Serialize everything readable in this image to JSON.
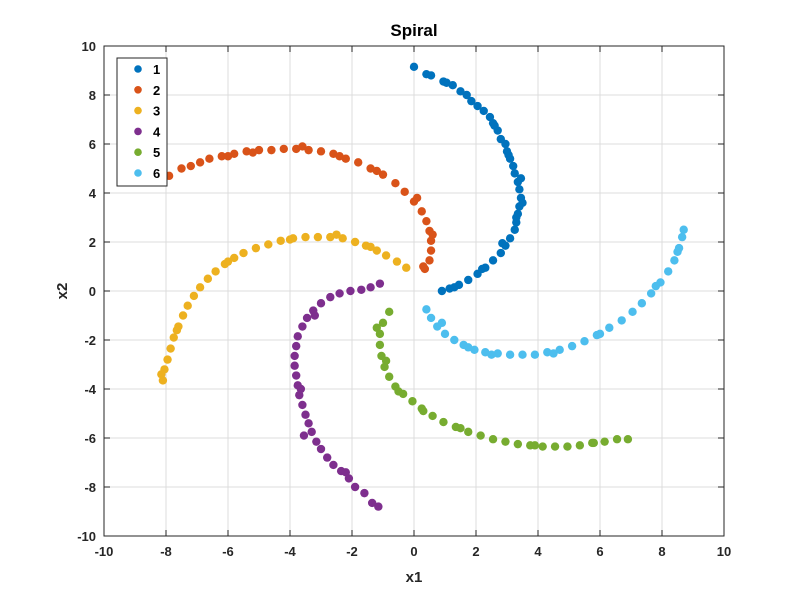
{
  "chart_data": {
    "type": "scatter",
    "title": "Spiral",
    "xlabel": "x1",
    "ylabel": "x2",
    "xlim": [
      -10,
      10
    ],
    "ylim": [
      -10,
      10
    ],
    "xticks": [
      -10,
      -8,
      -6,
      -4,
      -2,
      0,
      2,
      4,
      6,
      8,
      10
    ],
    "yticks": [
      -10,
      -8,
      -6,
      -4,
      -2,
      0,
      2,
      4,
      6,
      8,
      10
    ],
    "grid": true,
    "legend_position": "top-left",
    "series": [
      {
        "name": "1",
        "color": "#0072BD",
        "points": [
          [
            0.0,
            9.15
          ],
          [
            0.4,
            8.85
          ],
          [
            0.55,
            8.8
          ],
          [
            0.95,
            8.55
          ],
          [
            1.25,
            8.4
          ],
          [
            1.5,
            8.15
          ],
          [
            1.7,
            8.0
          ],
          [
            1.85,
            7.75
          ],
          [
            2.05,
            7.55
          ],
          [
            2.25,
            7.35
          ],
          [
            2.45,
            7.1
          ],
          [
            2.55,
            6.85
          ],
          [
            2.7,
            6.55
          ],
          [
            2.8,
            6.2
          ],
          [
            2.95,
            6.0
          ],
          [
            3.0,
            5.7
          ],
          [
            3.1,
            5.4
          ],
          [
            3.2,
            5.1
          ],
          [
            3.25,
            4.8
          ],
          [
            3.35,
            4.45
          ],
          [
            3.4,
            4.15
          ],
          [
            3.45,
            3.8
          ],
          [
            3.4,
            3.45
          ],
          [
            3.35,
            3.15
          ],
          [
            3.3,
            2.8
          ],
          [
            3.25,
            2.5
          ],
          [
            3.1,
            2.15
          ],
          [
            2.95,
            1.85
          ],
          [
            2.8,
            1.55
          ],
          [
            2.55,
            1.25
          ],
          [
            2.3,
            0.95
          ],
          [
            2.05,
            0.7
          ],
          [
            1.75,
            0.45
          ],
          [
            1.45,
            0.25
          ],
          [
            1.15,
            0.1
          ],
          [
            0.9,
            0.0
          ],
          [
            3.5,
            3.6
          ],
          [
            3.3,
            3.0
          ],
          [
            2.85,
            1.95
          ],
          [
            2.2,
            0.9
          ],
          [
            1.3,
            0.15
          ],
          [
            3.05,
            5.55
          ],
          [
            2.6,
            6.75
          ],
          [
            1.05,
            8.5
          ],
          [
            3.45,
            4.6
          ]
        ]
      },
      {
        "name": "2",
        "color": "#D95319",
        "points": [
          [
            -7.9,
            4.7
          ],
          [
            -7.5,
            5.0
          ],
          [
            -7.2,
            5.1
          ],
          [
            -6.9,
            5.25
          ],
          [
            -6.6,
            5.4
          ],
          [
            -6.2,
            5.5
          ],
          [
            -5.8,
            5.6
          ],
          [
            -5.4,
            5.7
          ],
          [
            -5.0,
            5.75
          ],
          [
            -4.6,
            5.75
          ],
          [
            -4.2,
            5.8
          ],
          [
            -3.8,
            5.8
          ],
          [
            -3.4,
            5.75
          ],
          [
            -3.0,
            5.7
          ],
          [
            -2.6,
            5.6
          ],
          [
            -2.2,
            5.4
          ],
          [
            -1.8,
            5.25
          ],
          [
            -1.4,
            5.0
          ],
          [
            -1.0,
            4.75
          ],
          [
            -0.6,
            4.4
          ],
          [
            -0.3,
            4.05
          ],
          [
            0.0,
            3.65
          ],
          [
            0.25,
            3.25
          ],
          [
            0.4,
            2.85
          ],
          [
            0.5,
            2.45
          ],
          [
            0.55,
            2.05
          ],
          [
            0.55,
            1.65
          ],
          [
            0.5,
            1.25
          ],
          [
            0.35,
            0.9
          ],
          [
            -3.6,
            5.9
          ],
          [
            -5.2,
            5.65
          ],
          [
            -6.0,
            5.5
          ],
          [
            -2.4,
            5.5
          ],
          [
            -1.2,
            4.9
          ],
          [
            0.1,
            3.8
          ],
          [
            0.6,
            2.3
          ],
          [
            0.3,
            1.0
          ]
        ]
      },
      {
        "name": "3",
        "color": "#EDB120",
        "points": [
          [
            -8.1,
            -3.65
          ],
          [
            -8.05,
            -3.2
          ],
          [
            -7.95,
            -2.8
          ],
          [
            -7.85,
            -2.35
          ],
          [
            -7.75,
            -1.9
          ],
          [
            -7.6,
            -1.45
          ],
          [
            -7.45,
            -1.0
          ],
          [
            -7.3,
            -0.6
          ],
          [
            -7.1,
            -0.2
          ],
          [
            -6.9,
            0.15
          ],
          [
            -6.65,
            0.5
          ],
          [
            -6.4,
            0.8
          ],
          [
            -6.1,
            1.1
          ],
          [
            -5.8,
            1.35
          ],
          [
            -5.5,
            1.55
          ],
          [
            -5.1,
            1.75
          ],
          [
            -4.7,
            1.9
          ],
          [
            -4.3,
            2.05
          ],
          [
            -3.9,
            2.15
          ],
          [
            -3.5,
            2.2
          ],
          [
            -3.1,
            2.2
          ],
          [
            -2.7,
            2.2
          ],
          [
            -2.3,
            2.15
          ],
          [
            -1.9,
            2.0
          ],
          [
            -1.55,
            1.85
          ],
          [
            -1.2,
            1.65
          ],
          [
            -0.9,
            1.45
          ],
          [
            -0.55,
            1.2
          ],
          [
            -0.25,
            0.95
          ],
          [
            -4.0,
            2.1
          ],
          [
            -2.5,
            2.3
          ],
          [
            -7.65,
            -1.6
          ],
          [
            -8.15,
            -3.4
          ],
          [
            -6.0,
            1.2
          ],
          [
            -1.4,
            1.8
          ]
        ]
      },
      {
        "name": "4",
        "color": "#7E2F8E",
        "points": [
          [
            -1.15,
            -8.8
          ],
          [
            -1.35,
            -8.65
          ],
          [
            -1.6,
            -8.25
          ],
          [
            -1.9,
            -8.0
          ],
          [
            -2.1,
            -7.65
          ],
          [
            -2.35,
            -7.35
          ],
          [
            -2.6,
            -7.1
          ],
          [
            -2.8,
            -6.8
          ],
          [
            -3.0,
            -6.45
          ],
          [
            -3.15,
            -6.15
          ],
          [
            -3.3,
            -5.75
          ],
          [
            -3.4,
            -5.4
          ],
          [
            -3.5,
            -5.05
          ],
          [
            -3.6,
            -4.65
          ],
          [
            -3.7,
            -4.25
          ],
          [
            -3.75,
            -3.85
          ],
          [
            -3.8,
            -3.45
          ],
          [
            -3.85,
            -3.05
          ],
          [
            -3.85,
            -2.65
          ],
          [
            -3.8,
            -2.25
          ],
          [
            -3.75,
            -1.85
          ],
          [
            -3.6,
            -1.45
          ],
          [
            -3.45,
            -1.1
          ],
          [
            -3.25,
            -0.8
          ],
          [
            -3.0,
            -0.5
          ],
          [
            -2.7,
            -0.25
          ],
          [
            -2.4,
            -0.1
          ],
          [
            -2.05,
            0.0
          ],
          [
            -1.7,
            0.05
          ],
          [
            -1.4,
            0.15
          ],
          [
            -1.1,
            0.3
          ],
          [
            -3.55,
            -5.9
          ],
          [
            -3.65,
            -4.0
          ],
          [
            -2.2,
            -7.4
          ],
          [
            -3.2,
            -1.0
          ]
        ]
      },
      {
        "name": "5",
        "color": "#77AC30",
        "points": [
          [
            -0.8,
            -0.85
          ],
          [
            -1.0,
            -1.3
          ],
          [
            -1.1,
            -1.75
          ],
          [
            -1.1,
            -2.2
          ],
          [
            -1.05,
            -2.65
          ],
          [
            -0.95,
            -3.1
          ],
          [
            -0.8,
            -3.5
          ],
          [
            -0.6,
            -3.9
          ],
          [
            -0.35,
            -4.2
          ],
          [
            -0.05,
            -4.5
          ],
          [
            0.25,
            -4.8
          ],
          [
            0.6,
            -5.1
          ],
          [
            0.95,
            -5.35
          ],
          [
            1.35,
            -5.55
          ],
          [
            1.75,
            -5.75
          ],
          [
            2.15,
            -5.9
          ],
          [
            2.55,
            -6.05
          ],
          [
            2.95,
            -6.15
          ],
          [
            3.35,
            -6.25
          ],
          [
            3.75,
            -6.3
          ],
          [
            4.15,
            -6.35
          ],
          [
            4.55,
            -6.35
          ],
          [
            4.95,
            -6.35
          ],
          [
            5.35,
            -6.3
          ],
          [
            5.75,
            -6.2
          ],
          [
            6.15,
            -6.15
          ],
          [
            6.55,
            -6.05
          ],
          [
            6.9,
            -6.05
          ],
          [
            -1.2,
            -1.5
          ],
          [
            -0.5,
            -4.1
          ],
          [
            1.5,
            -5.6
          ],
          [
            3.9,
            -6.3
          ],
          [
            5.8,
            -6.2
          ],
          [
            0.3,
            -4.9
          ],
          [
            -0.9,
            -2.85
          ]
        ]
      },
      {
        "name": "6",
        "color": "#4DBEEE",
        "points": [
          [
            0.4,
            -0.75
          ],
          [
            0.55,
            -1.1
          ],
          [
            0.75,
            -1.45
          ],
          [
            1.0,
            -1.75
          ],
          [
            1.3,
            -2.0
          ],
          [
            1.6,
            -2.2
          ],
          [
            1.95,
            -2.4
          ],
          [
            2.3,
            -2.5
          ],
          [
            2.7,
            -2.55
          ],
          [
            3.1,
            -2.6
          ],
          [
            3.5,
            -2.6
          ],
          [
            3.9,
            -2.6
          ],
          [
            4.3,
            -2.5
          ],
          [
            4.7,
            -2.4
          ],
          [
            5.1,
            -2.25
          ],
          [
            5.5,
            -2.05
          ],
          [
            5.9,
            -1.8
          ],
          [
            6.3,
            -1.5
          ],
          [
            6.7,
            -1.2
          ],
          [
            7.05,
            -0.85
          ],
          [
            7.35,
            -0.5
          ],
          [
            7.65,
            -0.1
          ],
          [
            7.95,
            0.35
          ],
          [
            8.2,
            0.8
          ],
          [
            8.4,
            1.25
          ],
          [
            8.55,
            1.75
          ],
          [
            8.65,
            2.2
          ],
          [
            8.7,
            2.5
          ],
          [
            0.9,
            -1.3
          ],
          [
            2.5,
            -2.6
          ],
          [
            4.5,
            -2.55
          ],
          [
            6.0,
            -1.75
          ],
          [
            7.8,
            0.2
          ],
          [
            8.5,
            1.6
          ],
          [
            1.75,
            -2.3
          ]
        ]
      }
    ]
  }
}
